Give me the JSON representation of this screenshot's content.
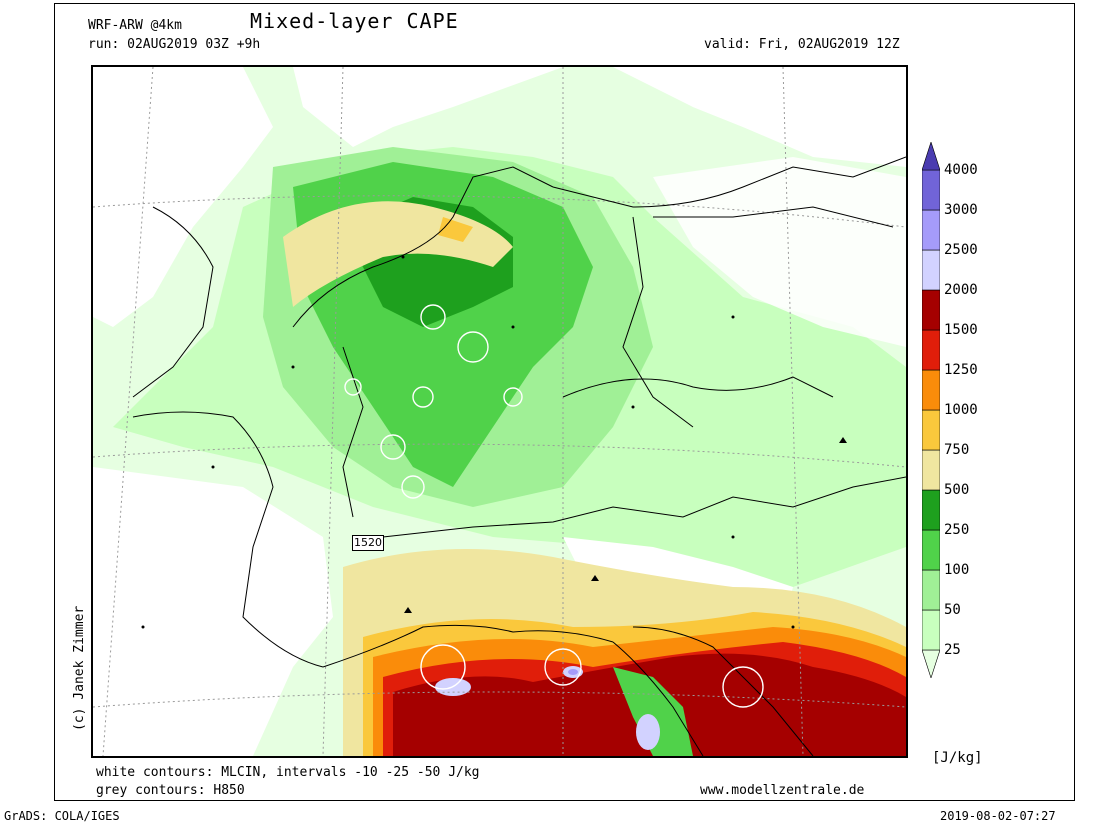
{
  "header": {
    "model": "WRF-ARW @4km",
    "title": "Mixed-layer CAPE",
    "run": "run: 02AUG2019 03Z +9h",
    "valid": "valid: Fri, 02AUG2019 12Z"
  },
  "map": {
    "station_label": "1520"
  },
  "colorbar": {
    "unit": "[J/kg]",
    "levels": [
      "4000",
      "3000",
      "2500",
      "2000",
      "1500",
      "1250",
      "1000",
      "750",
      "500",
      "250",
      "100",
      "50",
      "25"
    ],
    "colors": [
      "#e6ffe1",
      "#c8ffbe",
      "#a0f096",
      "#50d24a",
      "#1ea01e",
      "#f0e6a0",
      "#fac83c",
      "#fa8c0a",
      "#e01e0a",
      "#a50000",
      "#d2d2ff",
      "#a59bfa",
      "#7164d8",
      "#4a3cb0"
    ]
  },
  "footer": {
    "white_contours": "white contours: MLCIN, intervals -10 -25 -50 J/kg",
    "grey_contours": "grey contours: H850",
    "website": "www.modellzentrale.de",
    "grads": "GrADS: COLA/IGES",
    "timestamp": "2019-08-02-07:27",
    "credit": "(c) Janek Zimmer"
  }
}
